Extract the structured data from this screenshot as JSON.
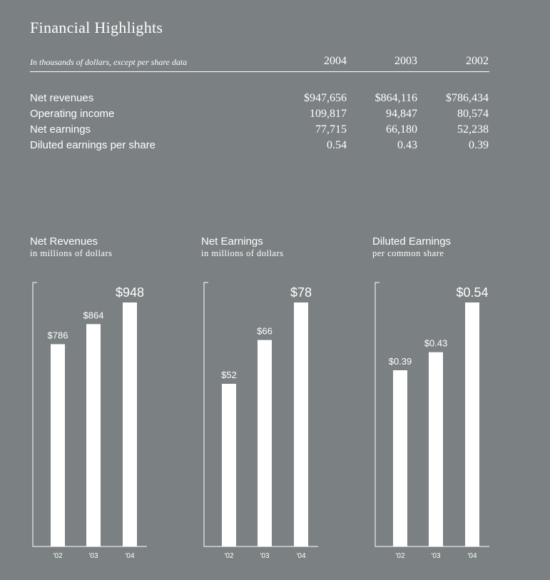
{
  "header": {
    "title": "Financial Highlights",
    "subtitle": "In thousands of dollars, except per share data",
    "years": [
      "2004",
      "2003",
      "2002"
    ]
  },
  "table": {
    "rows": [
      {
        "label": "Net revenues",
        "values": [
          "$947,656",
          "$864,116",
          "$786,434"
        ]
      },
      {
        "label": "Operating income",
        "values": [
          "109,817",
          "94,847",
          "80,574"
        ]
      },
      {
        "label": "Net earnings",
        "values": [
          "77,715",
          "66,180",
          "52,238"
        ]
      },
      {
        "label": "Diluted earnings per share",
        "values": [
          "0.54",
          "0.43",
          "0.39"
        ]
      }
    ]
  },
  "chart_data": [
    {
      "type": "bar",
      "title": "Net Revenues",
      "subtitle": "in millions of dollars",
      "categories": [
        "'02",
        "'03",
        "'04"
      ],
      "values": [
        786,
        864,
        948
      ],
      "labels": [
        "$786",
        "$864",
        "$948"
      ]
    },
    {
      "type": "bar",
      "title": "Net Earnings",
      "subtitle": "in millions of dollars",
      "categories": [
        "'02",
        "'03",
        "'04"
      ],
      "values": [
        52,
        66,
        78
      ],
      "labels": [
        "$52",
        "$66",
        "$78"
      ]
    },
    {
      "type": "bar",
      "title": "Diluted Earnings",
      "subtitle": "per common share",
      "categories": [
        "'02",
        "'03",
        "'04"
      ],
      "values": [
        0.39,
        0.43,
        0.54
      ],
      "labels": [
        "$0.39",
        "$0.43",
        "$0.54"
      ]
    }
  ]
}
